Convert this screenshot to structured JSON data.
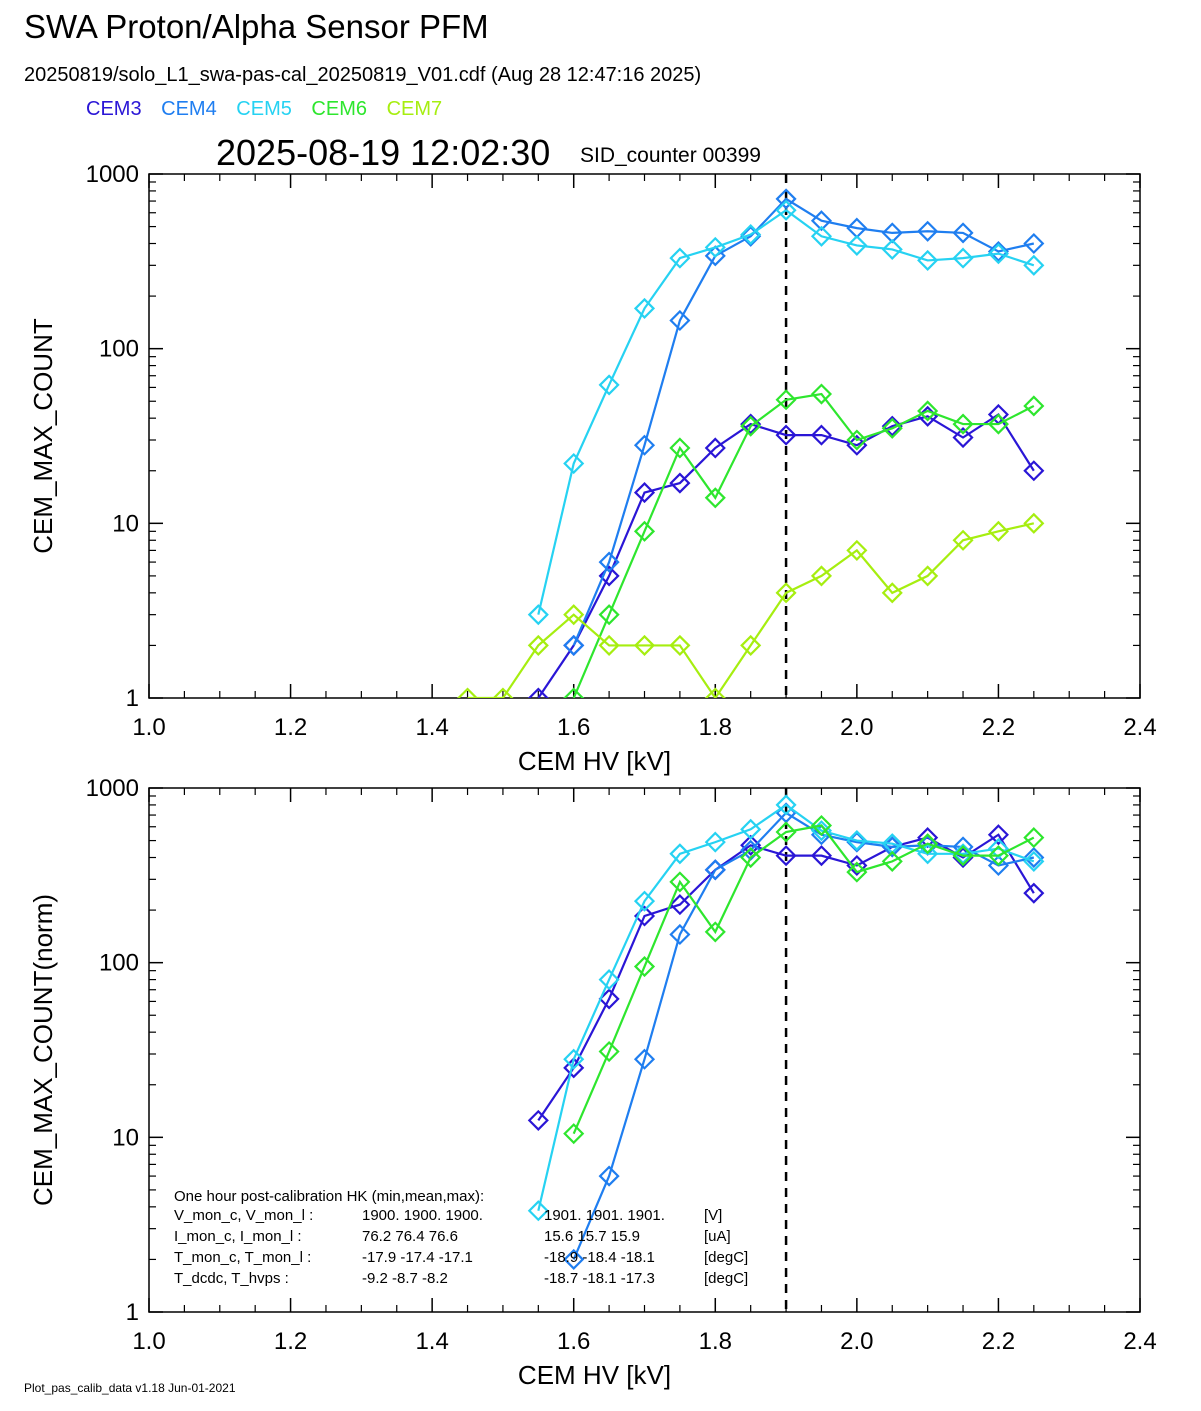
{
  "header": {
    "title": "SWA Proton/Alpha Sensor PFM",
    "subtitle": "20250819/solo_L1_swa-pas-cal_20250819_V01.cdf  (Aug 28 12:47:16 2025)",
    "timestamp": "2025-08-19 12:02:30",
    "sid": "SID_counter 00399"
  },
  "legend": [
    {
      "name": "CEM3",
      "color": "#2a16d6"
    },
    {
      "name": "CEM4",
      "color": "#1f7ef0"
    },
    {
      "name": "CEM5",
      "color": "#26d2f2"
    },
    {
      "name": "CEM6",
      "color": "#2ee62e"
    },
    {
      "name": "CEM7",
      "color": "#a6ee10"
    }
  ],
  "footer": "Plot_pas_calib_data v1.18 Jun-01-2021",
  "hk": {
    "title": "One hour post-calibration HK (min,mean,max):",
    "rows": [
      {
        "label": "V_mon_c, V_mon_l :",
        "c": "1900.  1900.  1900.",
        "l": "1901.  1901.  1901.",
        "unit": "[V]"
      },
      {
        "label": "I_mon_c,  I_mon_l :",
        "c": "76.2   76.4   76.6",
        "l": "15.6   15.7   15.9",
        "unit": "[uA]"
      },
      {
        "label": "T_mon_c, T_mon_l :",
        "c": "-17.9  -17.4  -17.1",
        "l": "-18.9  -18.4  -18.1",
        "unit": "[degC]"
      },
      {
        "label": "T_dcdc,    T_hvps :",
        "c": "-9.2   -8.7   -8.2",
        "l": "-18.7  -18.1  -17.3",
        "unit": "[degC]"
      }
    ]
  },
  "chart_data": [
    {
      "type": "line",
      "xlabel": "CEM HV [kV]",
      "ylabel": "CEM_MAX_COUNT",
      "xlim": [
        1.0,
        2.4
      ],
      "ylim": [
        1,
        1000
      ],
      "yscale": "log",
      "xticks": [
        "1.0",
        "1.2",
        "1.4",
        "1.6",
        "1.8",
        "2.0",
        "2.2",
        "2.4"
      ],
      "yticks": [
        "1",
        "10",
        "100",
        "1000"
      ],
      "vline": 1.9,
      "series": [
        {
          "name": "CEM3",
          "color": "#2a16d6",
          "points": [
            [
              1.55,
              1
            ],
            [
              1.6,
              2
            ],
            [
              1.65,
              5
            ],
            [
              1.7,
              15
            ],
            [
              1.75,
              17
            ],
            [
              1.8,
              27
            ],
            [
              1.85,
              37
            ],
            [
              1.9,
              32
            ],
            [
              1.95,
              32
            ],
            [
              2.0,
              28
            ],
            [
              2.05,
              36
            ],
            [
              2.1,
              41
            ],
            [
              2.15,
              31
            ],
            [
              2.2,
              42
            ],
            [
              2.25,
              20
            ]
          ]
        },
        {
          "name": "CEM4",
          "color": "#1f7ef0",
          "points": [
            [
              1.6,
              2
            ],
            [
              1.65,
              6
            ],
            [
              1.7,
              28
            ],
            [
              1.75,
              145
            ],
            [
              1.8,
              340
            ],
            [
              1.85,
              440
            ],
            [
              1.9,
              720
            ],
            [
              1.95,
              540
            ],
            [
              2.0,
              490
            ],
            [
              2.05,
              460
            ],
            [
              2.1,
              470
            ],
            [
              2.15,
              460
            ],
            [
              2.2,
              360
            ],
            [
              2.25,
              400
            ]
          ]
        },
        {
          "name": "CEM5",
          "color": "#26d2f2",
          "points": [
            [
              1.55,
              3
            ],
            [
              1.6,
              22
            ],
            [
              1.65,
              62
            ],
            [
              1.7,
              170
            ],
            [
              1.75,
              330
            ],
            [
              1.8,
              380
            ],
            [
              1.85,
              450
            ],
            [
              1.9,
              620
            ],
            [
              1.95,
              440
            ],
            [
              2.0,
              390
            ],
            [
              2.05,
              370
            ],
            [
              2.1,
              320
            ],
            [
              2.15,
              330
            ],
            [
              2.2,
              350
            ],
            [
              2.25,
              300
            ]
          ]
        },
        {
          "name": "CEM6",
          "color": "#2ee62e",
          "points": [
            [
              1.6,
              1
            ],
            [
              1.65,
              3
            ],
            [
              1.7,
              9
            ],
            [
              1.75,
              27
            ],
            [
              1.8,
              14
            ],
            [
              1.85,
              36
            ],
            [
              1.9,
              51
            ],
            [
              1.95,
              55
            ],
            [
              2.0,
              30
            ],
            [
              2.05,
              35
            ],
            [
              2.1,
              44
            ],
            [
              2.15,
              37
            ],
            [
              2.2,
              37
            ],
            [
              2.25,
              47
            ]
          ]
        },
        {
          "name": "CEM7",
          "color": "#a6ee10",
          "points": [
            [
              1.45,
              1
            ],
            [
              1.5,
              1
            ],
            [
              1.55,
              2
            ],
            [
              1.6,
              3
            ],
            [
              1.65,
              2
            ],
            [
              1.7,
              2
            ],
            [
              1.75,
              2
            ],
            [
              1.8,
              1
            ],
            [
              1.85,
              2
            ],
            [
              1.9,
              4
            ],
            [
              1.95,
              5
            ],
            [
              2.0,
              7
            ],
            [
              2.05,
              4
            ],
            [
              2.1,
              5
            ],
            [
              2.15,
              8
            ],
            [
              2.2,
              9
            ],
            [
              2.25,
              10
            ]
          ]
        }
      ]
    },
    {
      "type": "line",
      "xlabel": "CEM HV [kV]",
      "ylabel": "CEM_MAX_COUNT(norm)",
      "xlim": [
        1.0,
        2.4
      ],
      "ylim": [
        1,
        1000
      ],
      "yscale": "log",
      "xticks": [
        "1.0",
        "1.2",
        "1.4",
        "1.6",
        "1.8",
        "2.0",
        "2.2",
        "2.4"
      ],
      "yticks": [
        "1",
        "10",
        "100",
        "1000"
      ],
      "vline": 1.9,
      "series": [
        {
          "name": "CEM3",
          "color": "#2a16d6",
          "points": [
            [
              1.55,
              12.5
            ],
            [
              1.6,
              25
            ],
            [
              1.65,
              62
            ],
            [
              1.7,
              185
            ],
            [
              1.75,
              215
            ],
            [
              1.8,
              340
            ],
            [
              1.85,
              470
            ],
            [
              1.9,
              410
            ],
            [
              1.95,
              410
            ],
            [
              2.0,
              360
            ],
            [
              2.05,
              460
            ],
            [
              2.1,
              520
            ],
            [
              2.15,
              400
            ],
            [
              2.2,
              540
            ],
            [
              2.25,
              250
            ]
          ]
        },
        {
          "name": "CEM4",
          "color": "#1f7ef0",
          "points": [
            [
              1.6,
              2
            ],
            [
              1.65,
              6
            ],
            [
              1.7,
              28
            ],
            [
              1.75,
              145
            ],
            [
              1.8,
              340
            ],
            [
              1.85,
              440
            ],
            [
              1.9,
              720
            ],
            [
              1.95,
              540
            ],
            [
              2.0,
              490
            ],
            [
              2.05,
              460
            ],
            [
              2.1,
              470
            ],
            [
              2.15,
              460
            ],
            [
              2.2,
              360
            ],
            [
              2.25,
              400
            ]
          ]
        },
        {
          "name": "CEM5",
          "color": "#26d2f2",
          "points": [
            [
              1.55,
              3.8
            ],
            [
              1.6,
              28
            ],
            [
              1.65,
              80
            ],
            [
              1.7,
              225
            ],
            [
              1.75,
              420
            ],
            [
              1.8,
              490
            ],
            [
              1.85,
              580
            ],
            [
              1.9,
              800
            ],
            [
              1.95,
              570
            ],
            [
              2.0,
              500
            ],
            [
              2.05,
              480
            ],
            [
              2.1,
              420
            ],
            [
              2.15,
              420
            ],
            [
              2.2,
              450
            ],
            [
              2.25,
              380
            ]
          ]
        },
        {
          "name": "CEM6",
          "color": "#2ee62e",
          "points": [
            [
              1.6,
              10.5
            ],
            [
              1.65,
              31
            ],
            [
              1.7,
              95
            ],
            [
              1.75,
              290
            ],
            [
              1.8,
              150
            ],
            [
              1.85,
              400
            ],
            [
              1.9,
              560
            ],
            [
              1.95,
              610
            ],
            [
              2.0,
              330
            ],
            [
              2.05,
              380
            ],
            [
              2.1,
              480
            ],
            [
              2.15,
              410
            ],
            [
              2.2,
              410
            ],
            [
              2.25,
              520
            ]
          ]
        }
      ]
    }
  ]
}
